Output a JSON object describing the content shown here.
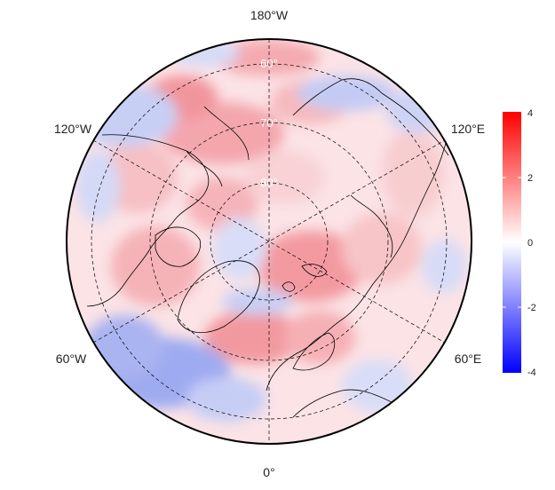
{
  "map": {
    "projection": "north-polar-stereographic",
    "longitude_labels": {
      "top": "180°W",
      "upper_left": "120°W",
      "upper_right": "120°E",
      "lower_left": "60°W",
      "lower_right": "60°E",
      "bottom": "0°"
    },
    "latitude_labels": [
      "60°",
      "70°",
      "80°"
    ],
    "field_description_colors": {
      "positive": "#ff0000",
      "neutral": "#ffffff",
      "negative": "#0000ff",
      "graticule": "#000000",
      "coastline": "#000000"
    }
  },
  "colorbar": {
    "ticks": [
      "4",
      "2",
      "0",
      "-2",
      "-4"
    ],
    "max": 4,
    "min": -4,
    "colors": {
      "top": "#ff0000",
      "middle": "#ffffff",
      "bottom": "#0000ff"
    }
  }
}
